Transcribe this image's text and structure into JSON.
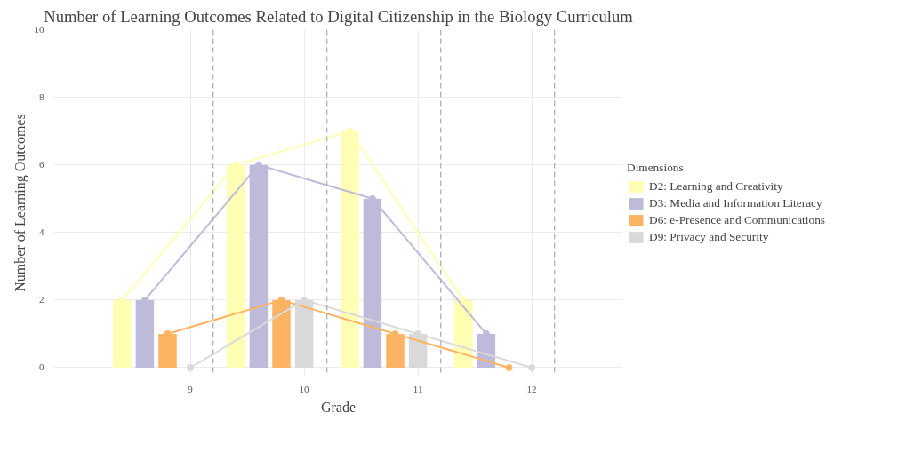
{
  "chart_data": {
    "type": "bar",
    "title": "Number of Learning Outcomes Related to Digital Citizenship in the Biology Curriculum",
    "xlabel": "Grade",
    "ylabel": "Number of Learning Outcomes",
    "legend_title": "Dimensions",
    "legend": "right",
    "grid": true,
    "xlim": [
      7.8,
      12.8
    ],
    "xticks": [
      9,
      10,
      11,
      12
    ],
    "ylim": [
      -0.25,
      10
    ],
    "yticks": [
      0,
      2,
      4,
      6,
      8,
      10
    ],
    "series": [
      {
        "name": "D2: Learning and Creativity",
        "color": "#ffffb3",
        "x": [
          8.4,
          9.4,
          10.4,
          11.4
        ],
        "values": [
          2,
          6,
          7,
          2
        ]
      },
      {
        "name": "D3: Media and Information Literacy",
        "color": "#bebada",
        "x": [
          8.6,
          9.6,
          10.6,
          11.6
        ],
        "values": [
          2,
          6,
          5,
          1
        ]
      },
      {
        "name": "D6: e-Presence and Communications",
        "color": "#fdb462",
        "x": [
          8.8,
          9.8,
          10.8,
          11.8
        ],
        "values": [
          1,
          2,
          1,
          0
        ]
      },
      {
        "name": "D9: Privacy and Security",
        "color": "#d9d9d9",
        "x": [
          9.0,
          10.0,
          11.0,
          12.0
        ],
        "values": [
          0,
          2,
          1,
          0
        ]
      },
      {
        "type": "line",
        "marker": "circle",
        "color": "#ffffb3",
        "x": [
          8.4,
          9.4,
          10.4,
          11.4
        ],
        "values": [
          2,
          6,
          7,
          2
        ]
      },
      {
        "type": "line",
        "marker": "circle",
        "color": "#bebada",
        "x": [
          8.6,
          9.6,
          10.6,
          11.6
        ],
        "values": [
          2,
          6,
          5,
          1
        ]
      },
      {
        "type": "line",
        "marker": "circle",
        "color": "#fdb462",
        "x": [
          8.8,
          9.8,
          10.8,
          11.8
        ],
        "values": [
          1,
          2,
          1,
          0
        ]
      },
      {
        "type": "line",
        "marker": "circle",
        "color": "#d9d9d9",
        "x": [
          9.0,
          10.0,
          11.0,
          12.0
        ],
        "values": [
          0,
          2,
          1,
          0
        ]
      }
    ],
    "ref_lines": [
      {
        "axis": "x",
        "value": 9.2,
        "color": "#aaaaaa",
        "line_style": "dashed"
      },
      {
        "axis": "x",
        "value": 10.2,
        "color": "#aaaaaa",
        "line_style": "dashed"
      },
      {
        "axis": "x",
        "value": 11.2,
        "color": "#aaaaaa",
        "line_style": "dashed"
      },
      {
        "axis": "x",
        "value": 12.2,
        "color": "#aaaaaa",
        "line_style": "dashed"
      }
    ]
  }
}
